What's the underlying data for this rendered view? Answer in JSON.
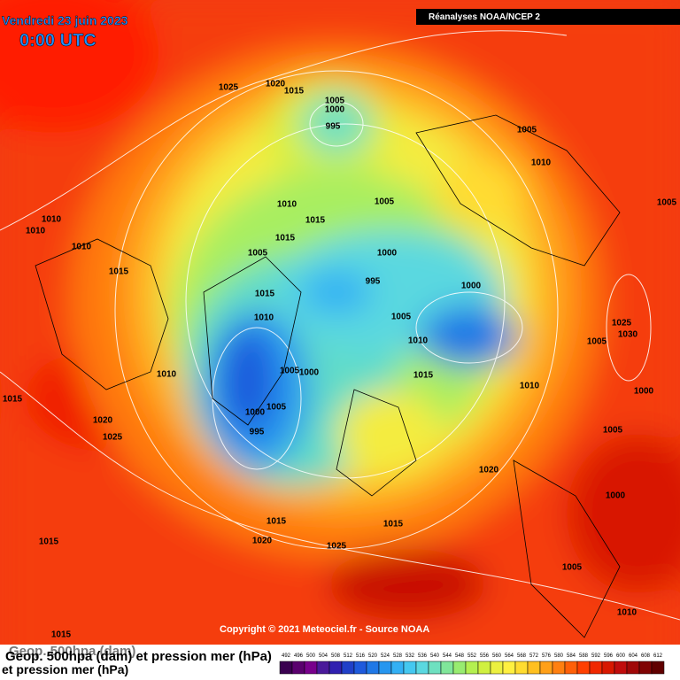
{
  "header": {
    "date": "Vendredi 23 juin 2023",
    "time": "0:00 UTC",
    "source_banner": "Réanalyses NOAA/NCEP 2"
  },
  "isobar_labels": [
    "1025",
    "1020",
    "1015",
    "1005",
    "1000",
    "995",
    "1005",
    "1010",
    "1010",
    "1010",
    "1010",
    "1010",
    "1015",
    "1005",
    "1005",
    "1015",
    "1005",
    "1000",
    "1015",
    "995",
    "1000",
    "1015",
    "1010",
    "1005",
    "1025",
    "1030",
    "1010",
    "1005",
    "1005",
    "1000",
    "1010",
    "1015",
    "1010",
    "1000",
    "1015",
    "1005",
    "1000",
    "1020",
    "995",
    "1025",
    "1005",
    "1020",
    "1000",
    "1015",
    "1015",
    "1020",
    "1015",
    "1025",
    "1005",
    "1010",
    "1015"
  ],
  "copyright": "Copyright © 2021 Meteociel.fr - Source NOAA",
  "legend": {
    "title_lines": [
      "Geop. 500hpa (dam)",
      "Geop. 500hpa (dam) et pression mer (hPa)",
      "et pression mer (hPa)"
    ],
    "ticks": [
      492,
      496,
      500,
      504,
      508,
      512,
      516,
      520,
      524,
      528,
      532,
      536,
      540,
      544,
      548,
      552,
      556,
      560,
      564,
      568,
      572,
      576,
      580,
      584,
      588,
      592,
      596,
      600,
      604,
      608,
      612
    ],
    "colors": [
      "#3a0050",
      "#5a006e",
      "#78008c",
      "#4a1a9a",
      "#3020b0",
      "#2040c8",
      "#1e5adc",
      "#1f78e6",
      "#2696ef",
      "#33b0f4",
      "#44c8f0",
      "#5ad8e0",
      "#6ee0c0",
      "#80e69a",
      "#98ec70",
      "#b4f050",
      "#d0f040",
      "#ecf040",
      "#fff040",
      "#ffdc30",
      "#ffc020",
      "#ffa018",
      "#ff8010",
      "#ff6008",
      "#ff4000",
      "#f02800",
      "#d81800",
      "#c00c0c",
      "#a00808",
      "#800404",
      "#600000"
    ]
  }
}
